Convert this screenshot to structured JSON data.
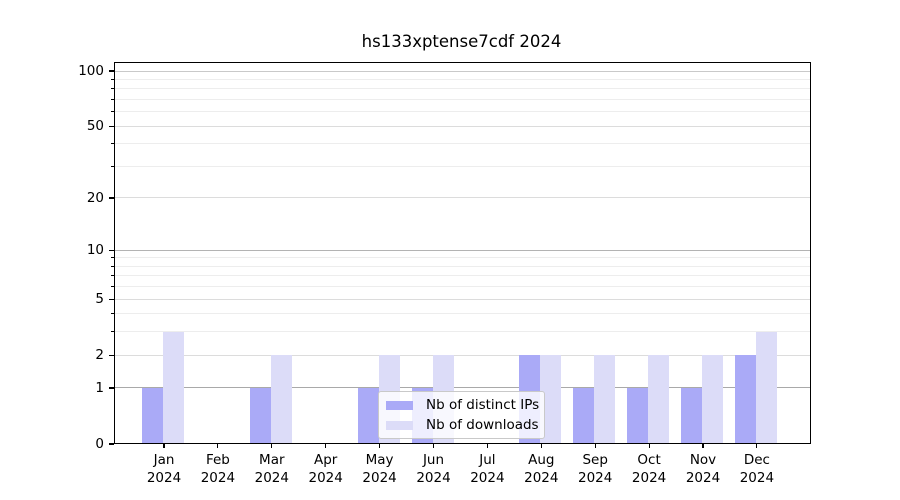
{
  "chart_data": {
    "type": "bar",
    "title": "hs133xptense7cdf 2024",
    "x": {
      "months": [
        "Jan",
        "Feb",
        "Mar",
        "Apr",
        "May",
        "Jun",
        "Jul",
        "Aug",
        "Sep",
        "Oct",
        "Nov",
        "Dec"
      ],
      "year": "2024"
    },
    "series": [
      {
        "name": "Nb of distinct IPs",
        "color": "#aaaaf7",
        "values": [
          1,
          0,
          1,
          0,
          1,
          1,
          0,
          2,
          1,
          1,
          1,
          2
        ]
      },
      {
        "name": "Nb of downloads",
        "color": "#dcdcf8",
        "values": [
          3,
          0,
          2,
          0,
          2,
          2,
          0,
          2,
          2,
          2,
          2,
          3
        ]
      }
    ],
    "yscale": "log10(1+y)",
    "ylim": [
      0,
      112
    ],
    "y_major_ticks": [
      0,
      1,
      2,
      5,
      10,
      20,
      50,
      100
    ],
    "y_minor_ticks": [
      3,
      4,
      6,
      7,
      8,
      9,
      30,
      40,
      60,
      70,
      80,
      90
    ],
    "grid": true,
    "legend_position": "lower center"
  },
  "colors": {
    "grid_1": "#a9a9a9",
    "grid_10": "#b3b3b3",
    "grid_100": "#c9c9c9",
    "grid_labeled": "#dcdcdc",
    "grid_minor": "#ededed",
    "axis": "#000000",
    "text": "#000000",
    "legend_border": "#c9c9c9"
  }
}
